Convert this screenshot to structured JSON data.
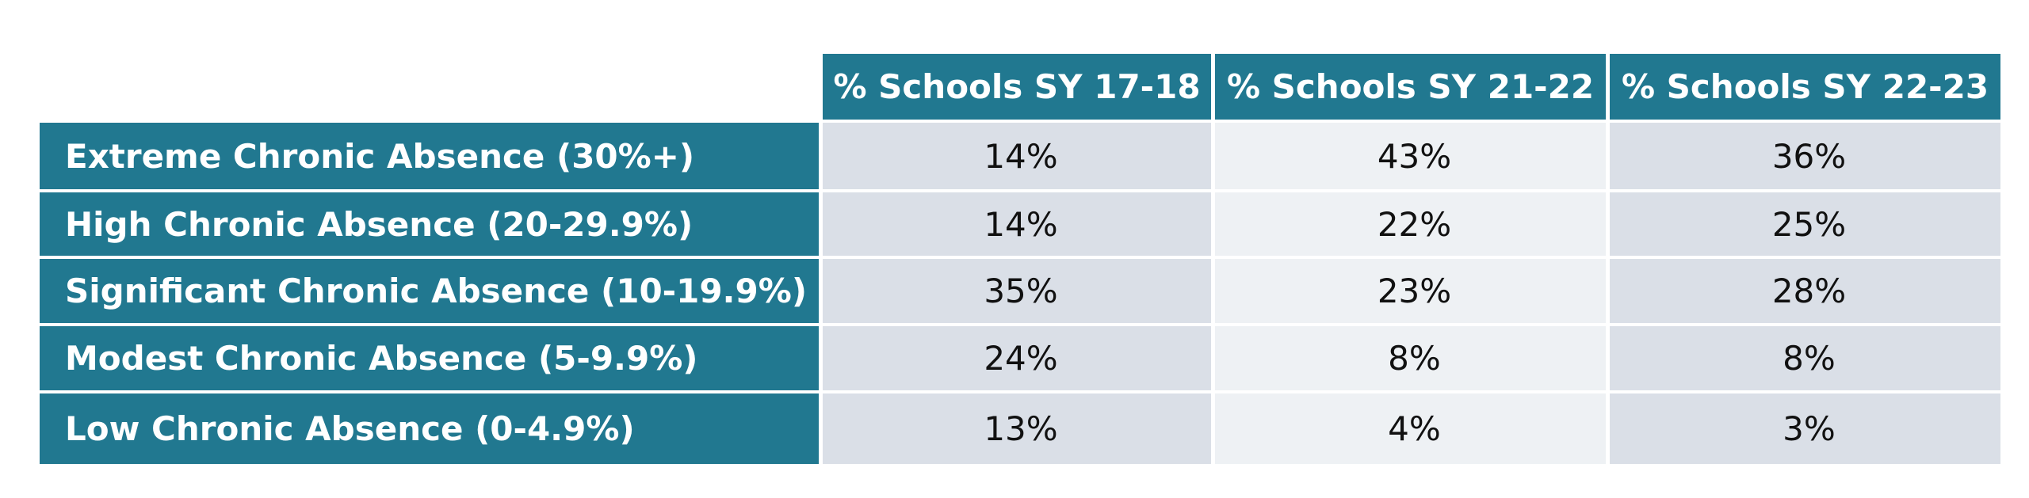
{
  "chart_data": {
    "type": "table",
    "columns": [
      "% Schools SY 17-18",
      "% Schools SY 21-22",
      "% Schools SY 22-23"
    ],
    "rows": [
      {
        "label": "Extreme Chronic Absence (30%+)",
        "values": [
          "14%",
          "43%",
          "36%"
        ]
      },
      {
        "label": "High Chronic Absence (20-29.9%)",
        "values": [
          "14%",
          "22%",
          "25%"
        ]
      },
      {
        "label": "Significant Chronic Absence (10-19.9%)",
        "values": [
          "35%",
          "23%",
          "28%"
        ]
      },
      {
        "label": "Modest Chronic Absence (5-9.9%)",
        "values": [
          "24%",
          "8%",
          "8%"
        ]
      },
      {
        "label": "Low Chronic Absence (0-4.9%)",
        "values": [
          "13%",
          "4%",
          "3%"
        ]
      }
    ]
  },
  "colors": {
    "header_bg": "#217890",
    "header_text": "#ffffff",
    "cell_dark": "#dadfe7",
    "cell_light": "#eef1f4",
    "cell_text": "#111111"
  }
}
